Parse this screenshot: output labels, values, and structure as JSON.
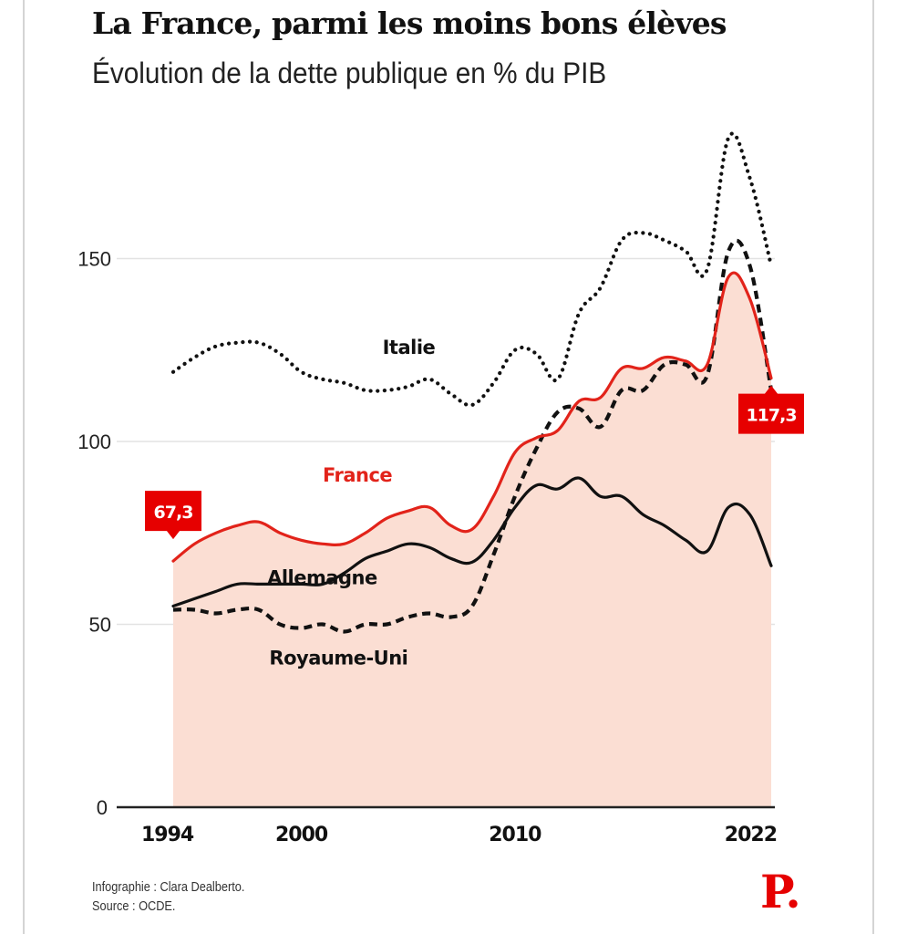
{
  "header": {
    "title": "La France, parmi les moins bons élèves",
    "subtitle": "Évolution de la dette publique en % du PIB"
  },
  "footer": {
    "credit": "Infographie : Clara Dealberto.",
    "source": "Source : OCDE."
  },
  "logo": {
    "text": "P.",
    "color": "#e60000"
  },
  "chart_data": {
    "type": "line",
    "title": "La France, parmi les moins bons élèves",
    "subtitle": "Évolution de la dette publique en % du PIB",
    "xlabel": "",
    "ylabel": "% du PIB",
    "x": [
      1994,
      1995,
      1996,
      1997,
      1998,
      1999,
      2000,
      2001,
      2002,
      2003,
      2004,
      2005,
      2006,
      2007,
      2008,
      2009,
      2010,
      2011,
      2012,
      2013,
      2014,
      2015,
      2016,
      2017,
      2018,
      2019,
      2020,
      2021,
      2022
    ],
    "xlim": [
      1994,
      2022
    ],
    "ylim": [
      0,
      185
    ],
    "x_ticks": [
      1994,
      2000,
      2010,
      2022
    ],
    "x_tick_labels": [
      "1994",
      "2000",
      "2010",
      "2022"
    ],
    "y_ticks": [
      0,
      50,
      100,
      150
    ],
    "y_tick_labels": [
      "0",
      "50",
      "100",
      "150"
    ],
    "grid": "horizontal",
    "legend": "inline labels",
    "series": [
      {
        "name": "Italie",
        "style": "dotted",
        "color": "#111111",
        "values": [
          119,
          123,
          126,
          127,
          127,
          124,
          119,
          117,
          116,
          114,
          114,
          115,
          117,
          113,
          110,
          116,
          125,
          124,
          117,
          135,
          142,
          155,
          157,
          155,
          152,
          147,
          183,
          172,
          148
        ]
      },
      {
        "name": "France",
        "style": "solid",
        "color": "#e2231a",
        "area_fill": "#fbded3",
        "values": [
          67.3,
          72,
          75,
          77,
          78,
          75,
          73,
          72,
          72,
          75,
          79,
          81,
          82,
          77,
          76,
          85,
          97,
          101,
          103,
          111,
          112,
          120,
          120,
          123,
          122,
          121,
          145,
          139,
          117.3
        ]
      },
      {
        "name": "Allemagne",
        "style": "solid",
        "color": "#111111",
        "values": [
          55,
          57,
          59,
          61,
          61,
          61,
          61,
          61,
          64,
          68,
          70,
          72,
          71,
          68,
          67,
          73,
          82,
          88,
          87,
          90,
          85,
          85,
          80,
          77,
          73,
          70,
          82,
          80,
          66
        ]
      },
      {
        "name": "Royaume-Uni",
        "style": "dashed",
        "color": "#111111",
        "values": [
          54,
          54,
          53,
          54,
          54,
          50,
          49,
          50,
          48,
          50,
          50,
          52,
          53,
          52,
          55,
          69,
          85,
          98,
          108,
          109,
          104,
          114,
          114,
          121,
          121,
          118,
          152,
          148,
          114
        ]
      }
    ],
    "annotations": [
      {
        "text": "67,3",
        "series": "France",
        "year": 1994,
        "value": 67.3,
        "color": "#e60000"
      },
      {
        "text": "117,3",
        "series": "France",
        "year": 2022,
        "value": 117.3,
        "color": "#e60000"
      }
    ],
    "series_labels": [
      {
        "series": "Italie",
        "text": "Italie",
        "year": 2003.8,
        "value": 124
      },
      {
        "series": "France",
        "text": "France",
        "year": 2001,
        "value": 89
      },
      {
        "series": "Allemagne",
        "text": "Allemagne",
        "year": 1998.4,
        "value": 61
      },
      {
        "series": "Royaume-Uni",
        "text": "Royaume-Uni",
        "year": 1998.5,
        "value": 39
      }
    ]
  }
}
